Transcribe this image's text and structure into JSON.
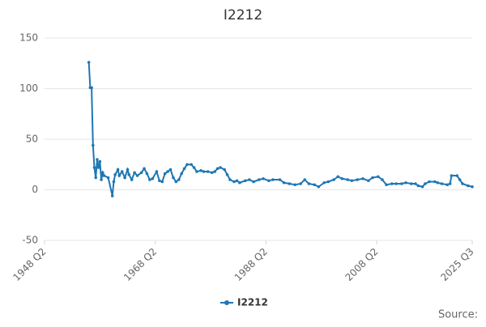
{
  "chart_data": {
    "type": "line",
    "title": "I2212",
    "source": "Source:",
    "xlim": [
      1948.25,
      2025.5
    ],
    "xticks": [
      {
        "value": 1948.25,
        "label": "1948 Q2"
      },
      {
        "value": 1968.25,
        "label": "1968 Q2"
      },
      {
        "value": 1988.25,
        "label": "1988 Q2"
      },
      {
        "value": 2008.25,
        "label": "2008 Q2"
      },
      {
        "value": 2025.5,
        "label": "2025 Q3"
      }
    ],
    "ylim": [
      -50,
      150
    ],
    "yticks": [
      -50,
      0,
      50,
      100,
      150
    ],
    "grid": true,
    "legend": "bottom",
    "series": [
      {
        "name": "I2212",
        "color": "#1f77b4",
        "x": [
          1956.25,
          1956.5,
          1956.75,
          1957,
          1957.25,
          1957.5,
          1957.75,
          1958,
          1958.25,
          1958.5,
          1958.75,
          1959,
          1959.75,
          1960.5,
          1960.75,
          1961,
          1961.5,
          1961.75,
          1962.25,
          1962.75,
          1963.25,
          1963.5,
          1964,
          1964.5,
          1965,
          1965.75,
          1966.25,
          1966.75,
          1967.25,
          1967.75,
          1968.5,
          1969,
          1969.5,
          1970,
          1970.5,
          1971,
          1971.5,
          1972,
          1972.5,
          1973,
          1973.5,
          1974,
          1974.75,
          1975.25,
          1975.75,
          1976.5,
          1977,
          1977.75,
          1978.5,
          1979,
          1979.5,
          1980,
          1980.75,
          1981.25,
          1981.75,
          1982.5,
          1983,
          1983.5,
          1984.5,
          1985.25,
          1986,
          1987,
          1987.75,
          1988.75,
          1989.5,
          1990.75,
          1991.5,
          1992.5,
          1993.5,
          1994.5,
          1995.25,
          1996,
          1997,
          1997.75,
          1998.75,
          1999.5,
          2000.5,
          2001.25,
          2002,
          2003,
          2003.75,
          2004.75,
          2005.75,
          2006.75,
          2007.5,
          2008.5,
          2009.25,
          2010,
          2011,
          2011.75,
          2012.75,
          2013.5,
          2014.5,
          2015.25,
          2015.75,
          2016.5,
          2017,
          2017.75,
          2018.75,
          2019.25,
          2020,
          2021,
          2021.5,
          2021.75,
          2022.75,
          2023.25,
          2023.75,
          2024.75,
          2025.5
        ],
        "values": [
          126,
          101,
          101,
          44,
          22,
          12,
          30,
          22,
          28,
          10,
          17,
          14,
          12,
          -6,
          8,
          15,
          20,
          14,
          18,
          12,
          20,
          15,
          10,
          17,
          14,
          17,
          21,
          16,
          10,
          11,
          18,
          9,
          8,
          16,
          18,
          20,
          12,
          8,
          10,
          16,
          21,
          25,
          25,
          22,
          18,
          19,
          18,
          18,
          17,
          18,
          21,
          22,
          20,
          15,
          10,
          8,
          9,
          7,
          9,
          10,
          8,
          10,
          11,
          9,
          10,
          10,
          7,
          6,
          5,
          6,
          10,
          6,
          5,
          3,
          7,
          8,
          10,
          13,
          11,
          10,
          9,
          10,
          11,
          9,
          12,
          13,
          10,
          5,
          6,
          6,
          6,
          7,
          6,
          6,
          4,
          3,
          6,
          8,
          8,
          7,
          6,
          5,
          6,
          14,
          14,
          10,
          6,
          4,
          3
        ]
      }
    ]
  }
}
